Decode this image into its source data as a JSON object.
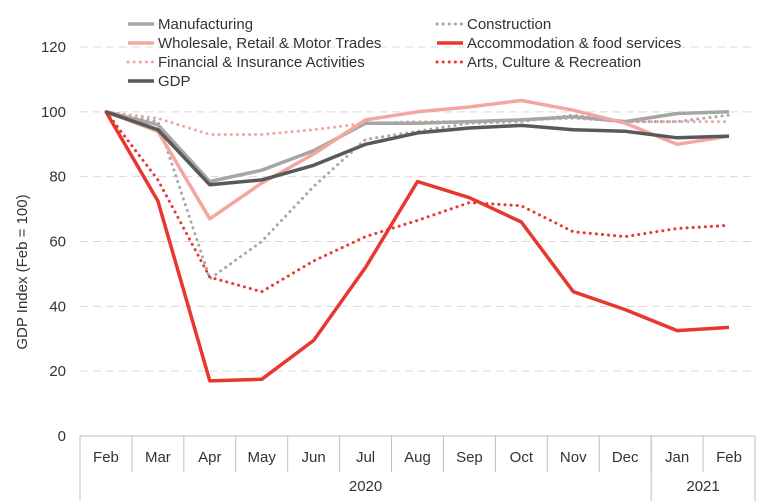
{
  "chart_data": {
    "type": "line",
    "ylabel": "GDP Index (Feb = 100)",
    "ylim": [
      0,
      120
    ],
    "yticks": [
      0,
      20,
      40,
      60,
      80,
      100,
      120
    ],
    "grid": true,
    "legend_position": "top",
    "categories": [
      "Feb",
      "Mar",
      "Apr",
      "May",
      "Jun",
      "Jul",
      "Aug",
      "Sep",
      "Oct",
      "Nov",
      "Dec",
      "Jan",
      "Feb"
    ],
    "year_groups": [
      {
        "label": "2020",
        "start": 0,
        "end": 10
      },
      {
        "label": "2021",
        "start": 11,
        "end": 12
      }
    ],
    "series": [
      {
        "name": "Manufacturing",
        "color": "#a6a6a6",
        "style": "solid",
        "width": 3.5,
        "values": [
          100,
          96,
          78.5,
          82,
          88,
          96.5,
          96.5,
          97,
          97.5,
          98.5,
          97,
          99.5,
          100
        ]
      },
      {
        "name": "Construction",
        "color": "#a6a6a6",
        "style": "dotted",
        "width": 3,
        "values": [
          100,
          97,
          48.5,
          60,
          77,
          91.5,
          94,
          96.5,
          97,
          99,
          97,
          97,
          99
        ]
      },
      {
        "name": "Wholesale, Retail & Motor Trades",
        "color": "#f4a6a1",
        "style": "solid",
        "width": 3.5,
        "values": [
          100,
          94,
          67,
          78,
          87,
          97.5,
          100,
          101.5,
          103.5,
          100.5,
          96.5,
          90,
          92.5
        ]
      },
      {
        "name": "Accommodation & food services",
        "color": "#e8372e",
        "style": "solid",
        "width": 3.5,
        "values": [
          100,
          72.5,
          17,
          17.5,
          29.5,
          52,
          78.5,
          73.5,
          66,
          44.5,
          39,
          32.5,
          33.5
        ]
      },
      {
        "name": "Financial & Insurance Activities",
        "color": "#f4a6a1",
        "style": "dotted",
        "width": 3,
        "values": [
          100,
          98,
          93,
          93,
          94.5,
          96.5,
          97,
          97,
          97.5,
          98,
          97,
          97,
          97
        ]
      },
      {
        "name": "Arts, Culture & Recreation",
        "color": "#e8372e",
        "style": "dotted",
        "width": 3,
        "values": [
          100,
          79,
          49,
          44.5,
          54,
          61.5,
          66.5,
          72,
          71,
          63,
          61.5,
          64,
          65
        ]
      },
      {
        "name": "GDP",
        "color": "#595959",
        "style": "solid",
        "width": 3.5,
        "values": [
          100,
          94.5,
          77.5,
          79,
          83.5,
          90,
          93.5,
          95,
          95.8,
          94.5,
          94,
          92,
          92.5
        ]
      }
    ]
  }
}
